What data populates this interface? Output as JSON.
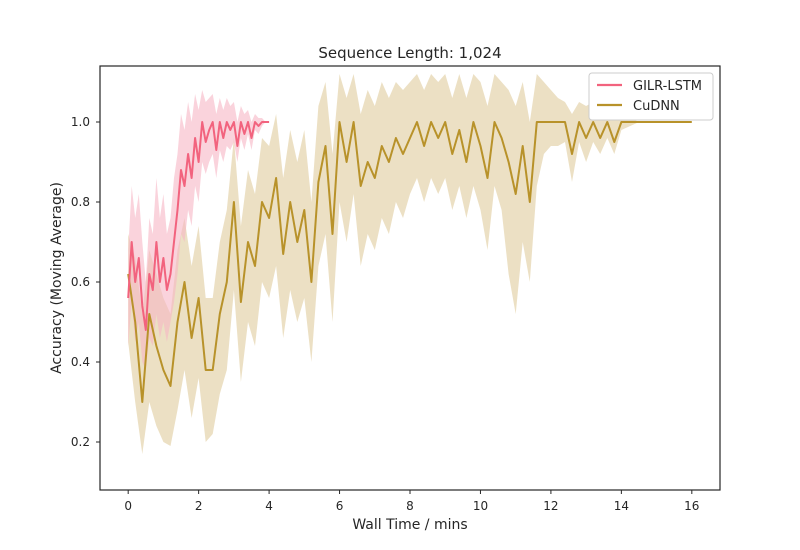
{
  "colors": {
    "gilr": "#f2637e",
    "cudnn": "#b8922a",
    "gilr_band": "#f7b6c4",
    "cudnn_band": "#e6d6b0"
  },
  "chart_data": {
    "type": "line",
    "title": "Sequence Length: 1,024",
    "xlabel": "Wall Time / mins",
    "ylabel": "Accuracy (Moving Average)",
    "xlim": [
      -0.8,
      16.8
    ],
    "ylim": [
      0.08,
      1.14
    ],
    "xticks": [
      0,
      2,
      4,
      6,
      8,
      10,
      12,
      14,
      16
    ],
    "yticks": [
      0.2,
      0.4,
      0.6,
      0.8,
      1.0
    ],
    "xtick_labels": [
      "0",
      "2",
      "4",
      "6",
      "8",
      "10",
      "12",
      "14",
      "16"
    ],
    "ytick_labels": [
      "0.2",
      "0.4",
      "0.6",
      "0.8",
      "1.0"
    ],
    "grid": false,
    "legend_position": "top-right",
    "series": [
      {
        "name": "GILR-LSTM",
        "color": "#f2637e",
        "x": [
          0,
          0.1,
          0.2,
          0.3,
          0.4,
          0.5,
          0.6,
          0.7,
          0.8,
          0.9,
          1.0,
          1.1,
          1.2,
          1.3,
          1.4,
          1.5,
          1.6,
          1.7,
          1.8,
          1.9,
          2.0,
          2.1,
          2.2,
          2.3,
          2.4,
          2.5,
          2.6,
          2.7,
          2.8,
          2.9,
          3.0,
          3.1,
          3.2,
          3.3,
          3.4,
          3.5,
          3.6,
          3.7,
          3.8,
          3.9,
          4.0
        ],
        "y": [
          0.56,
          0.7,
          0.6,
          0.66,
          0.54,
          0.48,
          0.62,
          0.58,
          0.7,
          0.6,
          0.66,
          0.58,
          0.62,
          0.7,
          0.78,
          0.88,
          0.84,
          0.92,
          0.86,
          0.96,
          0.9,
          1.0,
          0.95,
          0.98,
          1.0,
          0.93,
          1.0,
          0.96,
          1.0,
          0.98,
          1.0,
          0.94,
          1.0,
          0.97,
          1.0,
          0.96,
          1.0,
          0.99,
          1.0,
          1.0,
          1.0
        ],
        "lower": [
          0.44,
          0.55,
          0.45,
          0.5,
          0.4,
          0.38,
          0.46,
          0.44,
          0.52,
          0.46,
          0.5,
          0.45,
          0.5,
          0.55,
          0.62,
          0.72,
          0.7,
          0.78,
          0.74,
          0.84,
          0.8,
          0.9,
          0.87,
          0.9,
          0.92,
          0.86,
          0.93,
          0.9,
          0.94,
          0.93,
          0.95,
          0.9,
          0.96,
          0.93,
          0.97,
          0.93,
          0.98,
          0.97,
          0.99,
          1.0,
          1.0
        ],
        "upper": [
          0.68,
          0.84,
          0.76,
          0.82,
          0.7,
          0.6,
          0.76,
          0.72,
          0.86,
          0.76,
          0.82,
          0.72,
          0.76,
          0.86,
          0.92,
          1.02,
          0.98,
          1.05,
          1.0,
          1.07,
          1.03,
          1.08,
          1.05,
          1.06,
          1.07,
          1.02,
          1.06,
          1.03,
          1.06,
          1.04,
          1.05,
          1.0,
          1.04,
          1.02,
          1.03,
          1.0,
          1.02,
          1.01,
          1.01,
          1.0,
          1.0
        ]
      },
      {
        "name": "CuDNN",
        "color": "#b8922a",
        "x": [
          0,
          0.2,
          0.4,
          0.6,
          0.8,
          1.0,
          1.2,
          1.4,
          1.6,
          1.8,
          2.0,
          2.2,
          2.4,
          2.6,
          2.8,
          3.0,
          3.2,
          3.4,
          3.6,
          3.8,
          4.0,
          4.2,
          4.4,
          4.6,
          4.8,
          5.0,
          5.2,
          5.4,
          5.6,
          5.8,
          6.0,
          6.2,
          6.4,
          6.6,
          6.8,
          7.0,
          7.2,
          7.4,
          7.6,
          7.8,
          8.0,
          8.2,
          8.4,
          8.6,
          8.8,
          9.0,
          9.2,
          9.4,
          9.6,
          9.8,
          10.0,
          10.2,
          10.4,
          10.6,
          10.8,
          11.0,
          11.2,
          11.4,
          11.6,
          11.8,
          12.0,
          12.2,
          12.4,
          12.6,
          12.8,
          13.0,
          13.2,
          13.4,
          13.6,
          13.8,
          14.0,
          14.5,
          15.0,
          15.5,
          16.0
        ],
        "y": [
          0.62,
          0.5,
          0.3,
          0.52,
          0.44,
          0.38,
          0.34,
          0.5,
          0.6,
          0.46,
          0.56,
          0.38,
          0.38,
          0.52,
          0.6,
          0.8,
          0.55,
          0.7,
          0.64,
          0.8,
          0.76,
          0.86,
          0.67,
          0.8,
          0.7,
          0.78,
          0.6,
          0.85,
          0.94,
          0.72,
          1.0,
          0.9,
          1.0,
          0.84,
          0.9,
          0.86,
          0.94,
          0.9,
          0.96,
          0.92,
          0.96,
          1.0,
          0.94,
          1.0,
          0.96,
          1.0,
          0.92,
          0.98,
          0.9,
          1.0,
          0.94,
          0.86,
          1.0,
          0.96,
          0.9,
          0.82,
          0.94,
          0.8,
          1.0,
          1.0,
          1.0,
          1.0,
          1.0,
          0.92,
          1.0,
          0.96,
          1.0,
          0.96,
          1.0,
          0.95,
          1.0,
          1.0,
          1.0,
          1.0,
          1.0
        ],
        "lower": [
          0.45,
          0.3,
          0.17,
          0.3,
          0.24,
          0.2,
          0.19,
          0.28,
          0.38,
          0.26,
          0.36,
          0.2,
          0.22,
          0.32,
          0.38,
          0.58,
          0.35,
          0.5,
          0.44,
          0.6,
          0.56,
          0.64,
          0.46,
          0.58,
          0.5,
          0.56,
          0.4,
          0.64,
          0.72,
          0.5,
          0.8,
          0.7,
          0.82,
          0.64,
          0.72,
          0.68,
          0.76,
          0.72,
          0.8,
          0.76,
          0.82,
          0.86,
          0.8,
          0.86,
          0.82,
          0.86,
          0.78,
          0.84,
          0.76,
          0.84,
          0.78,
          0.68,
          0.84,
          0.78,
          0.62,
          0.52,
          0.7,
          0.6,
          0.84,
          0.92,
          0.94,
          0.94,
          0.95,
          0.85,
          0.95,
          0.9,
          0.95,
          0.92,
          0.96,
          0.92,
          0.98,
          1.0,
          1.0,
          1.0,
          1.0
        ],
        "upper": [
          0.72,
          0.66,
          0.52,
          0.68,
          0.62,
          0.56,
          0.52,
          0.68,
          0.76,
          0.64,
          0.74,
          0.56,
          0.56,
          0.7,
          0.78,
          0.96,
          0.74,
          0.88,
          0.82,
          0.96,
          0.94,
          1.02,
          0.86,
          0.98,
          0.9,
          0.98,
          0.8,
          1.04,
          1.1,
          0.92,
          1.12,
          1.06,
          1.12,
          1.02,
          1.08,
          1.04,
          1.1,
          1.06,
          1.1,
          1.08,
          1.1,
          1.12,
          1.08,
          1.12,
          1.1,
          1.12,
          1.06,
          1.12,
          1.06,
          1.12,
          1.1,
          1.04,
          1.12,
          1.1,
          1.08,
          1.04,
          1.1,
          1.0,
          1.12,
          1.1,
          1.08,
          1.06,
          1.05,
          1.02,
          1.05,
          1.04,
          1.05,
          1.03,
          1.04,
          1.03,
          1.02,
          1.0,
          1.0,
          1.0,
          1.0
        ]
      }
    ]
  }
}
